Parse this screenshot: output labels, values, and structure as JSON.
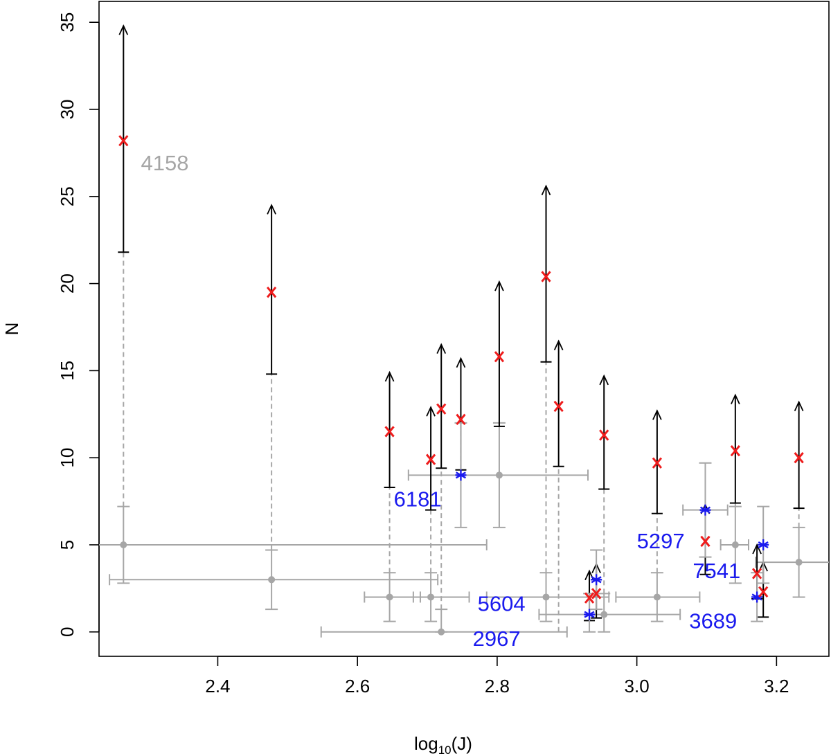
{
  "chart_data": {
    "type": "scatter",
    "title": "",
    "xlabel_main": "log",
    "xlabel_sub": "10",
    "xlabel_tail": "(J)",
    "ylabel": "N",
    "xlim": [
      2.23,
      3.275
    ],
    "ylim": [
      -1.4,
      36.2
    ],
    "xticks": [
      2.4,
      2.6,
      2.8,
      3.0,
      3.2
    ],
    "xtick_labels": [
      "2.4",
      "2.6",
      "2.8",
      "3.0",
      "3.2"
    ],
    "yticks": [
      0,
      5,
      10,
      15,
      20,
      25,
      30,
      35
    ],
    "ytick_labels": [
      "0",
      "5",
      "10",
      "15",
      "20",
      "25",
      "30",
      "35"
    ],
    "colors": {
      "red": "#ee1c1c",
      "blue": "#1a1aee",
      "gray": "#a6a6a6",
      "black": "#000000"
    },
    "gray_points": [
      {
        "x": 2.265,
        "y": 5,
        "xerr": [
          2.12,
          2.785
        ],
        "yerr": [
          2.8,
          7.2
        ]
      },
      {
        "x": 2.477,
        "y": 3,
        "xerr": [
          2.245,
          2.715
        ],
        "yerr": [
          1.3,
          4.7
        ]
      },
      {
        "x": 2.646,
        "y": 2,
        "xerr": [
          2.61,
          2.69
        ],
        "yerr": [
          0.6,
          3.4
        ]
      },
      {
        "x": 2.705,
        "y": 2,
        "xerr": [
          2.68,
          2.76
        ],
        "yerr": [
          0.6,
          3.4
        ]
      },
      {
        "x": 2.72,
        "y": 0,
        "xerr": [
          2.548,
          2.9
        ],
        "yerr": [
          0,
          1.3
        ]
      },
      {
        "x": 2.803,
        "y": 9,
        "xerr": [
          2.673,
          2.93
        ],
        "yerr": [
          6,
          12
        ]
      },
      {
        "x": 2.87,
        "y": 2,
        "xerr": [
          2.785,
          2.96
        ],
        "yerr": [
          0.6,
          3.4
        ]
      },
      {
        "x": 2.953,
        "y": 1,
        "xerr": [
          2.86,
          3.062
        ],
        "yerr": [
          0,
          2.2
        ]
      },
      {
        "x": 3.029,
        "y": 2,
        "xerr": [
          2.97,
          3.09
        ],
        "yerr": [
          0.6,
          3.4
        ]
      },
      {
        "x": 3.141,
        "y": 5,
        "xerr": [
          3.12,
          3.16
        ],
        "yerr": [
          2.8,
          7.2
        ]
      },
      {
        "x": 3.232,
        "y": 4,
        "xerr": [
          3.17,
          3.29
        ],
        "yerr": [
          2.0,
          6.0
        ]
      }
    ],
    "blue_points": [
      {
        "x": 2.748,
        "y": 9,
        "yerr": [
          6,
          12
        ]
      },
      {
        "x": 2.932,
        "y": 1,
        "yerr": [
          0,
          2.2
        ]
      },
      {
        "x": 2.942,
        "y": 3,
        "yerr": [
          1.3,
          4.7
        ]
      },
      {
        "x": 3.098,
        "y": 7,
        "yerr": [
          4.3,
          9.7
        ],
        "xerr": [
          3.066,
          3.13
        ]
      },
      {
        "x": 3.172,
        "y": 2,
        "yerr": [
          0.6,
          3.4
        ]
      },
      {
        "x": 3.181,
        "y": 5,
        "yerr": [
          2.8,
          7.2
        ]
      }
    ],
    "red_points": [
      {
        "x": 2.265,
        "y": 28.2,
        "low": 21.8,
        "high": 34.8
      },
      {
        "x": 2.477,
        "y": 19.5,
        "low": 14.8,
        "high": 24.5
      },
      {
        "x": 2.646,
        "y": 11.5,
        "low": 8.3,
        "high": 14.9
      },
      {
        "x": 2.705,
        "y": 9.9,
        "low": 7.0,
        "high": 12.9
      },
      {
        "x": 2.72,
        "y": 12.8,
        "low": 9.4,
        "high": 16.5
      },
      {
        "x": 2.748,
        "y": 12.2,
        "low": 9.3,
        "high": 15.7
      },
      {
        "x": 2.803,
        "y": 15.8,
        "low": 11.8,
        "high": 20.1
      },
      {
        "x": 2.87,
        "y": 20.4,
        "low": 15.5,
        "high": 25.6
      },
      {
        "x": 2.888,
        "y": 12.95,
        "low": 9.5,
        "high": 16.7
      },
      {
        "x": 2.953,
        "y": 11.3,
        "low": 8.2,
        "high": 14.7
      },
      {
        "x": 3.029,
        "y": 9.7,
        "low": 6.8,
        "high": 12.7
      },
      {
        "x": 3.098,
        "y": 5.2,
        "low": 3.3,
        "high": 7.3
      },
      {
        "x": 3.141,
        "y": 10.4,
        "low": 7.4,
        "high": 13.6
      },
      {
        "x": 3.232,
        "y": 10.0,
        "low": 7.1,
        "high": 13.2
      },
      {
        "x": 2.932,
        "y": 1.95,
        "low": 0.65,
        "high": 3.5
      },
      {
        "x": 2.942,
        "y": 2.2,
        "low": 0.8,
        "high": 3.9
      },
      {
        "x": 3.172,
        "y": 3.35,
        "low": 1.9,
        "high": 5.0
      },
      {
        "x": 3.181,
        "y": 2.3,
        "low": 0.85,
        "high": 4.0
      }
    ],
    "dashed_links": [
      {
        "x": 2.265,
        "from": 7.2,
        "to": 21.8
      },
      {
        "x": 2.477,
        "from": 4.7,
        "to": 14.8
      },
      {
        "x": 2.646,
        "from": 3.4,
        "to": 8.3
      },
      {
        "x": 2.705,
        "from": 3.4,
        "to": 7.0
      },
      {
        "x": 2.72,
        "from": 1.3,
        "to": 9.4
      },
      {
        "x": 2.748,
        "from": 12.0,
        "to": 9.3
      },
      {
        "x": 2.87,
        "from": 3.4,
        "to": 15.5
      },
      {
        "x": 2.888,
        "from": 0.0,
        "to": 9.5
      },
      {
        "x": 2.953,
        "from": 2.2,
        "to": 8.2
      },
      {
        "x": 3.029,
        "from": 3.4,
        "to": 6.8
      },
      {
        "x": 3.141,
        "from": 7.2,
        "to": 7.4
      },
      {
        "x": 3.232,
        "from": 6.0,
        "to": 7.1
      }
    ],
    "annotations": [
      {
        "text": "4158",
        "x": 2.29,
        "y": 26.5,
        "color": "gray"
      },
      {
        "text": "6181",
        "x": 2.652,
        "y": 7.2,
        "color": "blue"
      },
      {
        "text": "5604",
        "x": 2.772,
        "y": 1.2,
        "color": "blue"
      },
      {
        "text": "2967",
        "x": 2.765,
        "y": -0.8,
        "color": "blue"
      },
      {
        "text": "5297",
        "x": 3.0,
        "y": 4.8,
        "color": "blue"
      },
      {
        "text": "7541",
        "x": 3.08,
        "y": 3.1,
        "color": "blue"
      },
      {
        "text": "3689",
        "x": 3.075,
        "y": 0.2,
        "color": "blue"
      }
    ]
  }
}
